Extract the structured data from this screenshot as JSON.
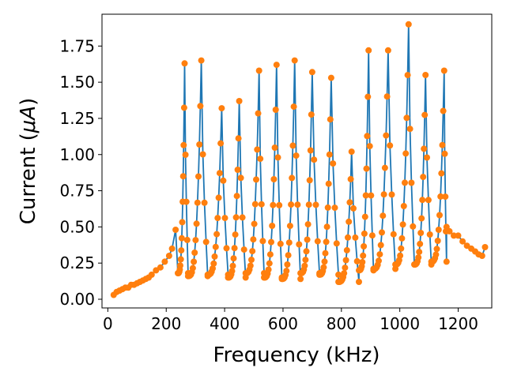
{
  "chart_data": {
    "type": "line",
    "title": "",
    "xlabel": "Frequency (kHz)",
    "ylabel_prefix": "Current (",
    "ylabel_symbol": "μA",
    "ylabel_suffix": ")",
    "xlim": [
      -20,
      1315
    ],
    "ylim": [
      -0.06,
      1.97
    ],
    "xticks": [
      0,
      200,
      400,
      600,
      800,
      1000,
      1200
    ],
    "xtick_labels": [
      "0",
      "200",
      "400",
      "600",
      "800",
      "1000",
      "1200"
    ],
    "yticks": [
      0,
      0.25,
      0.5,
      0.75,
      1.0,
      1.25,
      1.5,
      1.75
    ],
    "ytick_labels": [
      "0.00",
      "0.25",
      "0.50",
      "0.75",
      "1.00",
      "1.25",
      "1.50",
      "1.75"
    ],
    "grid": false,
    "line_color": "#1f77b4",
    "marker_color": "#ff7f0e",
    "baseline": [
      [
        20,
        0.03
      ],
      [
        30,
        0.05
      ],
      [
        40,
        0.06
      ],
      [
        50,
        0.07
      ],
      [
        60,
        0.08
      ],
      [
        70,
        0.08
      ],
      [
        80,
        0.1
      ],
      [
        90,
        0.1
      ],
      [
        100,
        0.11
      ],
      [
        110,
        0.12
      ],
      [
        120,
        0.13
      ],
      [
        130,
        0.14
      ],
      [
        140,
        0.15
      ],
      [
        150,
        0.17
      ],
      [
        165,
        0.2
      ],
      [
        180,
        0.22
      ],
      [
        195,
        0.26
      ],
      [
        210,
        0.3
      ],
      [
        220,
        0.35
      ],
      [
        232,
        0.48
      ]
    ],
    "tail": [
      [
        1160,
        0.5
      ],
      [
        1170,
        0.47
      ],
      [
        1185,
        0.44
      ],
      [
        1200,
        0.44
      ],
      [
        1215,
        0.4
      ],
      [
        1230,
        0.37
      ],
      [
        1245,
        0.35
      ],
      [
        1258,
        0.33
      ],
      [
        1270,
        0.31
      ],
      [
        1282,
        0.3
      ],
      [
        1292,
        0.36
      ]
    ],
    "resonances": [
      {
        "start": 240,
        "peak": 263,
        "end": 275,
        "peak_value": 1.63,
        "trough_value": 0.18
      },
      {
        "start": 275,
        "peak": 320,
        "end": 342,
        "peak_value": 1.65,
        "trough_value": 0.16
      },
      {
        "start": 342,
        "peak": 390,
        "end": 412,
        "peak_value": 1.32,
        "trough_value": 0.17
      },
      {
        "start": 412,
        "peak": 450,
        "end": 472,
        "peak_value": 1.37,
        "trough_value": 0.15
      },
      {
        "start": 472,
        "peak": 518,
        "end": 535,
        "peak_value": 1.58,
        "trough_value": 0.18
      },
      {
        "start": 535,
        "peak": 578,
        "end": 596,
        "peak_value": 1.62,
        "trough_value": 0.15
      },
      {
        "start": 596,
        "peak": 640,
        "end": 660,
        "peak_value": 1.65,
        "trough_value": 0.14
      },
      {
        "start": 660,
        "peak": 700,
        "end": 725,
        "peak_value": 1.57,
        "trough_value": 0.18
      },
      {
        "start": 725,
        "peak": 765,
        "end": 790,
        "peak_value": 1.53,
        "trough_value": 0.17
      },
      {
        "start": 790,
        "peak": 835,
        "end": 860,
        "peak_value": 1.02,
        "trough_value": 0.12
      },
      {
        "start": 860,
        "peak": 893,
        "end": 910,
        "peak_value": 1.72,
        "trough_value": 0.2
      },
      {
        "start": 910,
        "peak": 960,
        "end": 985,
        "peak_value": 1.72,
        "trough_value": 0.21
      },
      {
        "start": 985,
        "peak": 1030,
        "end": 1050,
        "peak_value": 1.9,
        "trough_value": 0.24
      },
      {
        "start": 1050,
        "peak": 1088,
        "end": 1108,
        "peak_value": 1.55,
        "trough_value": 0.24
      },
      {
        "start": 1108,
        "peak": 1152,
        "end": 1160,
        "peak_value": 1.58,
        "trough_value": 0.26
      }
    ]
  }
}
